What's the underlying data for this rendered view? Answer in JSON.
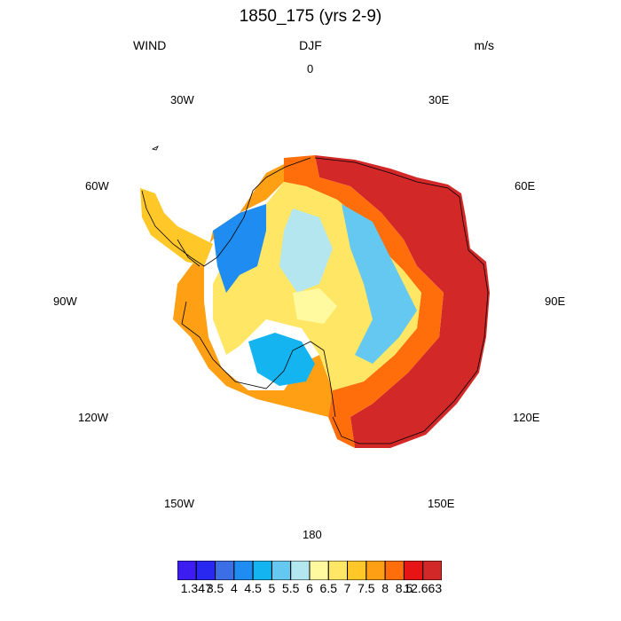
{
  "header": {
    "title": "1850_175 (yrs 2-9)",
    "left": "WIND",
    "center": "DJF",
    "right": "m/s"
  },
  "longitude_labels": {
    "lon_0": "0",
    "lon_30e": "30E",
    "lon_60e": "60E",
    "lon_90e": "90E",
    "lon_120e": "120E",
    "lon_150e": "150E",
    "lon_180": "180",
    "lon_150w": "150W",
    "lon_120w": "120W",
    "lon_90w": "90W",
    "lon_60w": "60W",
    "lon_30w": "30W"
  },
  "colorbar": {
    "colors": [
      "#3c1cf0",
      "#2828f0",
      "#3c6ee6",
      "#1e8cf0",
      "#14b4f0",
      "#64c8f0",
      "#b4e6f0",
      "#fffaa0",
      "#ffe664",
      "#ffc828",
      "#ffa014",
      "#ff6e0a",
      "#e61414",
      "#d22828"
    ],
    "labels": [
      "1.347",
      "3.5",
      "4",
      "4.5",
      "5",
      "5.5",
      "6",
      "6.5",
      "7",
      "7.5",
      "8",
      "8.5",
      "12.663"
    ]
  }
}
